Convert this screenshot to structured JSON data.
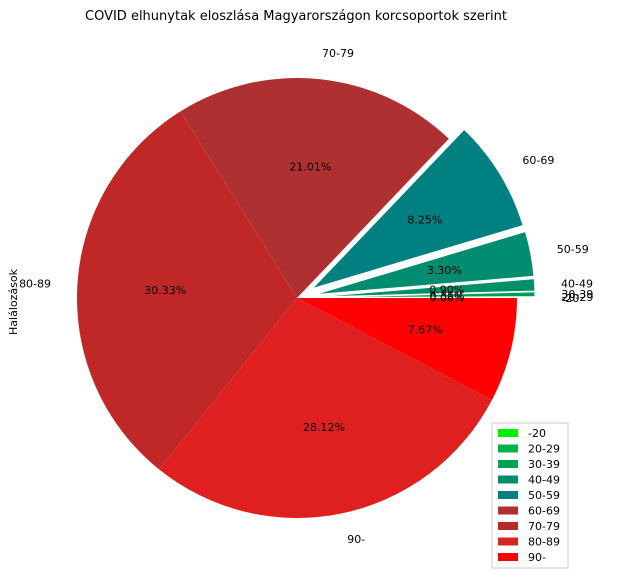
{
  "chart_data": {
    "type": "pie",
    "title": "COVID elhunytak eloszlása Magyarországon korcsoportok szerint",
    "ylabel": "Halálozások",
    "legend_position": "bottom-right",
    "start_angle_deg": 0,
    "direction": "counterclockwise",
    "slices": [
      {
        "label": "-20",
        "value": 0.02,
        "pct_text": "",
        "color": "#00ee00",
        "explode": true
      },
      {
        "label": "20-29",
        "value": 0.06,
        "pct_text": "0.06%",
        "color": "#00b245",
        "explode": true
      },
      {
        "label": "30-39",
        "value": 0.35,
        "pct_text": "0.35%",
        "color": "#00a050",
        "explode": true
      },
      {
        "label": "40-49",
        "value": 0.9,
        "pct_text": "0.90%",
        "color": "#009068",
        "explode": true
      },
      {
        "label": "50-59",
        "value": 3.3,
        "pct_text": "3.30%",
        "color": "#008c6e",
        "explode": true
      },
      {
        "label": "60-69",
        "value": 8.25,
        "pct_text": "8.25%",
        "color": "#008080",
        "explode": true
      },
      {
        "label": "70-79",
        "value": 21.01,
        "pct_text": "21.01%",
        "color": "#af3030",
        "explode": false
      },
      {
        "label": "80-89",
        "value": 30.33,
        "pct_text": "30.33%",
        "color": "#c02828",
        "explode": false
      },
      {
        "label": "90-",
        "value": 28.12,
        "pct_text": "28.12%",
        "color": "#e02020",
        "explode": false
      },
      {
        "label": "",
        "value": 7.67,
        "pct_text": "7.67%",
        "color": "#ff0000",
        "explode": false
      }
    ],
    "wedge_labels": [
      "-20",
      "20-29",
      "30-39",
      "40-49",
      "50-59",
      "60-69",
      "70-79",
      "80-89",
      "90-"
    ],
    "legend": [
      {
        "label": "-20",
        "color": "#00ee00"
      },
      {
        "label": "20-29",
        "color": "#00b245"
      },
      {
        "label": "30-39",
        "color": "#00a050"
      },
      {
        "label": "40-49",
        "color": "#009068"
      },
      {
        "label": "50-59",
        "color": "#008080"
      },
      {
        "label": "60-69",
        "color": "#af3030"
      },
      {
        "label": "70-79",
        "color": "#b52a2a"
      },
      {
        "label": "80-89",
        "color": "#d42424"
      },
      {
        "label": "90-",
        "color": "#ff0000"
      }
    ]
  }
}
